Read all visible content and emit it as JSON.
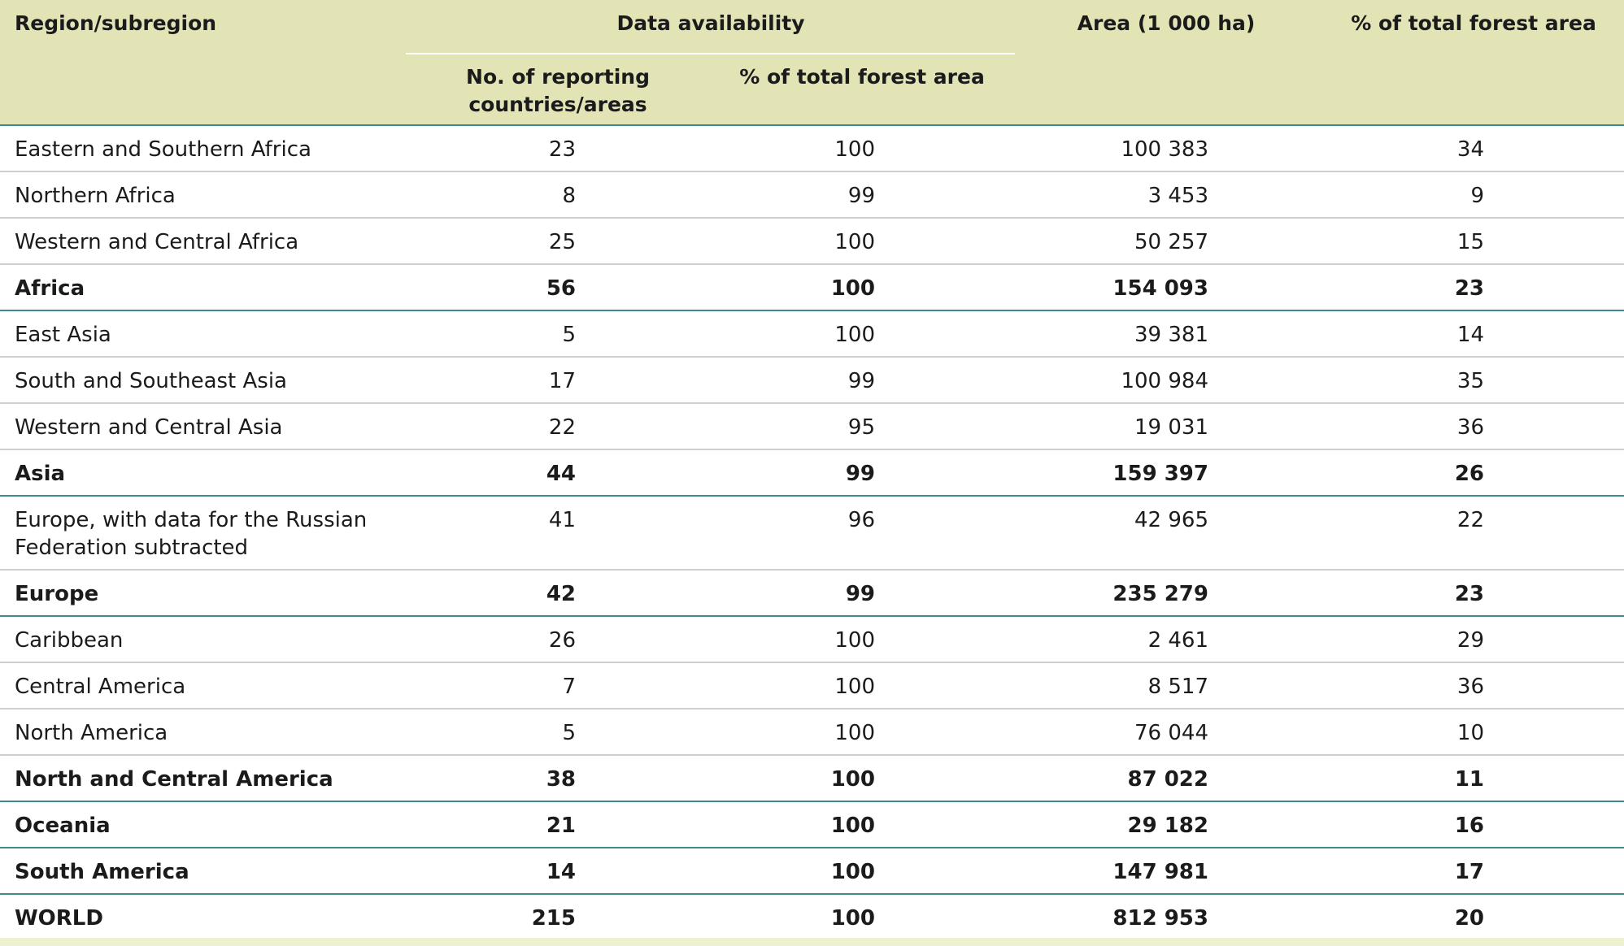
{
  "table": {
    "header": {
      "region": "Region/subregion",
      "data_availability": "Data availability",
      "reporting": "No. of reporting countries/areas",
      "share_reporting": "% of total forest area",
      "area": "Area (1 000 ha)",
      "share_total": "% of total forest area"
    },
    "groups": [
      {
        "rows": [
          [
            "Eastern and Southern Africa",
            "23",
            "100",
            "100 383",
            "34"
          ],
          [
            "Northern Africa",
            "8",
            "99",
            "3 453",
            "9"
          ],
          [
            "Western and Central Africa",
            "25",
            "100",
            "50 257",
            "15"
          ]
        ],
        "total": [
          "Africa",
          "56",
          "100",
          "154 093",
          "23"
        ]
      },
      {
        "rows": [
          [
            "East Asia",
            "5",
            "100",
            "39 381",
            "14"
          ],
          [
            "South and Southeast Asia",
            "17",
            "99",
            "100 984",
            "35"
          ],
          [
            "Western and Central Asia",
            "22",
            "95",
            "19 031",
            "36"
          ]
        ],
        "total": [
          "Asia",
          "44",
          "99",
          "159 397",
          "26"
        ]
      },
      {
        "rows": [
          [
            "Europe, with data for the Russian Federation subtracted",
            "41",
            "96",
            "42 965",
            "22"
          ]
        ],
        "total": [
          "Europe",
          "42",
          "99",
          "235 279",
          "23"
        ]
      },
      {
        "rows": [
          [
            "Caribbean",
            "26",
            "100",
            "2 461",
            "29"
          ],
          [
            "Central America",
            "7",
            "100",
            "8 517",
            "36"
          ],
          [
            "North America",
            "5",
            "100",
            "76 044",
            "10"
          ]
        ],
        "total": [
          "North and Central America",
          "38",
          "100",
          "87 022",
          "11"
        ]
      },
      {
        "rows": [],
        "total": [
          "Oceania",
          "21",
          "100",
          "29 182",
          "16"
        ]
      },
      {
        "rows": [],
        "total": [
          "South America",
          "14",
          "100",
          "147 981",
          "17"
        ]
      },
      {
        "rows": [],
        "total": [
          "WORLD",
          "215",
          "100",
          "812 953",
          "20"
        ]
      }
    ]
  }
}
